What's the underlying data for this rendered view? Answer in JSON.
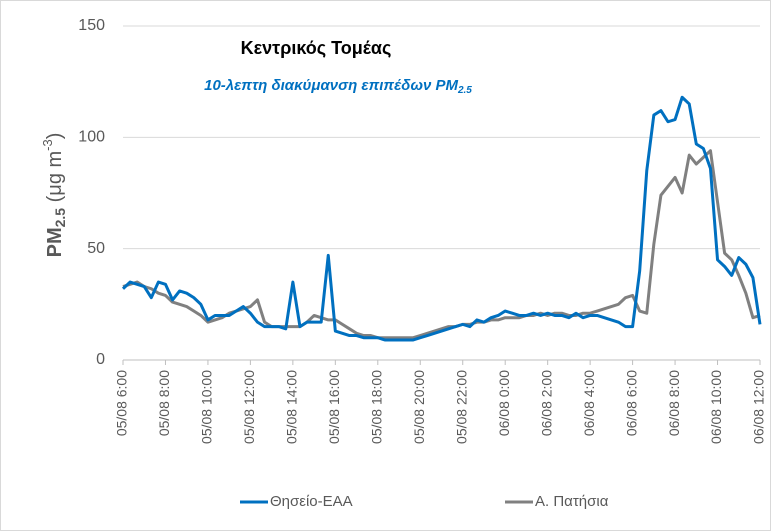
{
  "chart_data": {
    "type": "line",
    "title": "Κεντρικός Τομέας",
    "subtitle": [
      "10-λεπτη διακύμανση επιπέδων PM",
      "2.5"
    ],
    "y_label": [
      "PM",
      "2.5",
      " (μg m",
      "-3",
      ")"
    ],
    "categories": [
      "05/08 6:00",
      null,
      null,
      null,
      null,
      null,
      "05/08 8:00",
      null,
      null,
      null,
      null,
      null,
      "05/08 10:00",
      null,
      null,
      null,
      null,
      null,
      "05/08 12:00",
      null,
      null,
      null,
      null,
      null,
      "05/08 14:00",
      null,
      null,
      null,
      null,
      null,
      "05/08 16:00",
      null,
      null,
      null,
      null,
      null,
      "05/08 18:00",
      null,
      null,
      null,
      null,
      null,
      "05/08 20:00",
      null,
      null,
      null,
      null,
      null,
      "05/08 22:00",
      null,
      null,
      null,
      null,
      null,
      "06/08 0:00",
      null,
      null,
      null,
      null,
      null,
      "06/08 2:00",
      null,
      null,
      null,
      null,
      null,
      "06/08 4:00",
      null,
      null,
      null,
      null,
      null,
      "06/08 6:00",
      null,
      null,
      null,
      null,
      null,
      "06/08 8:00",
      null,
      null,
      null,
      null,
      null,
      "06/08 10:00",
      null,
      null,
      null,
      null,
      null,
      "06/08 12:00"
    ],
    "series": [
      {
        "name": "Θησείο-ΕΑΑ",
        "color": "#0070c0",
        "values": [
          32,
          35,
          34,
          33,
          28,
          35,
          34,
          27,
          31,
          30,
          28,
          25,
          18,
          20,
          20,
          20,
          22,
          24,
          21,
          17,
          15,
          15,
          15,
          14,
          35,
          15,
          17,
          17,
          17,
          47,
          13,
          12,
          11,
          11,
          10,
          10,
          10,
          9,
          9,
          9,
          9,
          9,
          10,
          11,
          12,
          13,
          14,
          15,
          16,
          15,
          18,
          17,
          19,
          20,
          22,
          21,
          20,
          20,
          21,
          20,
          21,
          20,
          20,
          19,
          21,
          19,
          20,
          20,
          19,
          18,
          17,
          15,
          15,
          40,
          85,
          110,
          112,
          107,
          108,
          118,
          115,
          97,
          95,
          86,
          45,
          42,
          38,
          46,
          43,
          37,
          16
        ]
      },
      {
        "name": "Α. Πατήσια",
        "color": "#808080",
        "values": [
          33,
          34,
          35,
          33,
          32,
          30,
          29,
          26,
          25,
          24,
          22,
          20,
          17,
          18,
          19,
          21,
          22,
          23,
          24,
          27,
          17,
          15,
          15,
          15,
          15,
          15,
          17,
          20,
          19,
          18,
          18,
          16,
          14,
          12,
          11,
          11,
          10,
          10,
          10,
          10,
          10,
          10,
          11,
          12,
          13,
          14,
          15,
          15,
          16,
          16,
          17,
          17,
          18,
          18,
          19,
          19,
          19,
          20,
          20,
          21,
          20,
          21,
          21,
          20,
          20,
          21,
          21,
          22,
          23,
          24,
          25,
          28,
          29,
          22,
          21,
          52,
          74,
          78,
          82,
          75,
          92,
          88,
          91,
          94,
          71,
          48,
          45,
          38,
          30,
          19,
          20
        ]
      }
    ],
    "ylim": [
      0,
      150
    ],
    "yticks": [
      0,
      50,
      100,
      150
    ],
    "grid": true
  }
}
